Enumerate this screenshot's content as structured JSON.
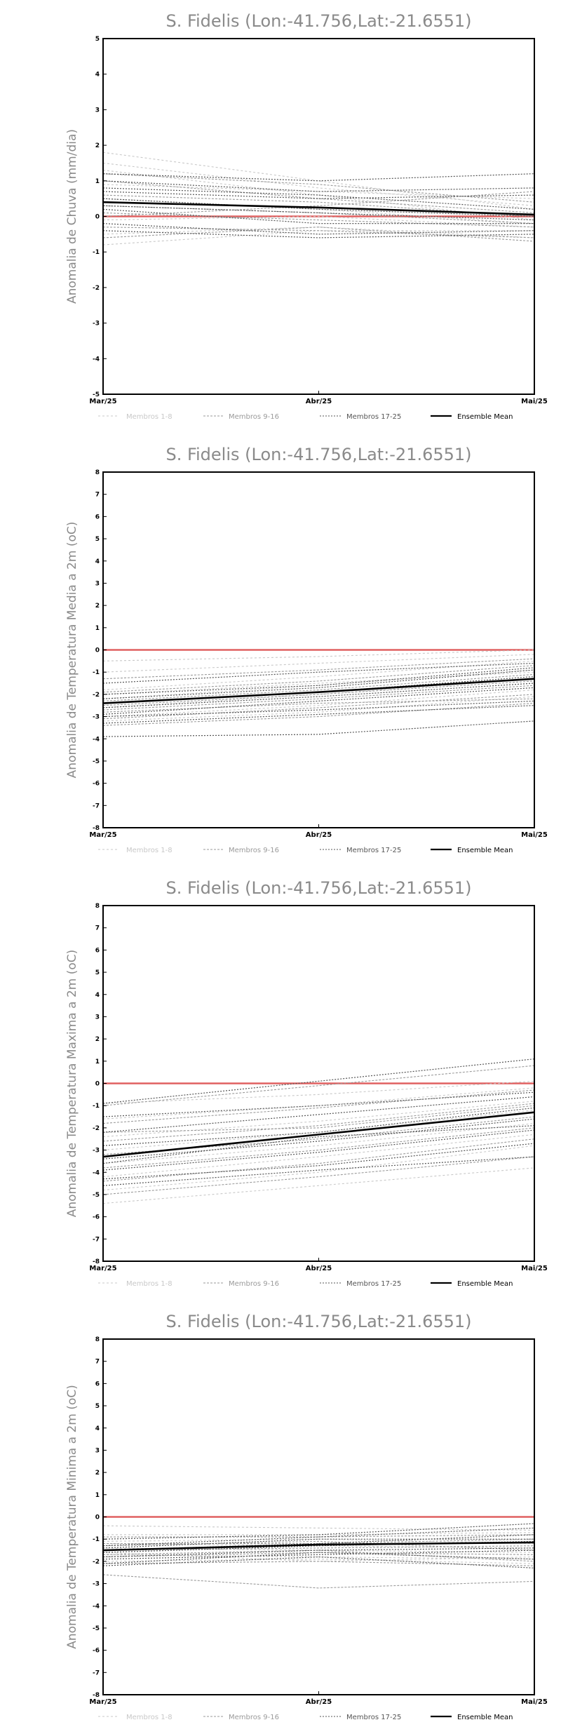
{
  "legend": {
    "members_1_8": "Membros 1-8",
    "members_9_16": "Membros 9-16",
    "members_17_25": "Membros 17-25",
    "ensemble_mean": "Ensemble Mean"
  },
  "colors": {
    "members_1_8": "#c8c8c8",
    "members_9_16": "#9a9a9a",
    "members_17_25": "#555555",
    "ensemble_mean": "#000000",
    "zero_line": "#e06060"
  },
  "chart_data": [
    {
      "type": "line",
      "title": "S. Fidelis (Lon:-41.756,Lat:-21.6551)",
      "ylabel": "Anomalia de Chuva (mm/dia)",
      "categories": [
        "Mar/25",
        "Abr/25",
        "Mai/25"
      ],
      "ylim": [
        -5,
        5
      ],
      "yticks": [
        -5,
        -4,
        -3,
        -2,
        -1,
        0,
        1,
        2,
        3,
        4,
        5
      ],
      "zero_line": true,
      "series": [
        {
          "group": "members_1_8",
          "values": [
            1.8,
            1.0,
            0.2
          ]
        },
        {
          "group": "members_1_8",
          "values": [
            1.5,
            0.8,
            0.3
          ]
        },
        {
          "group": "members_1_8",
          "values": [
            1.3,
            0.6,
            -0.1
          ]
        },
        {
          "group": "members_1_8",
          "values": [
            0.9,
            0.7,
            0.5
          ]
        },
        {
          "group": "members_1_8",
          "values": [
            0.5,
            0.2,
            -0.2
          ]
        },
        {
          "group": "members_1_8",
          "values": [
            -0.1,
            0.0,
            -0.3
          ]
        },
        {
          "group": "members_1_8",
          "values": [
            -0.5,
            -0.3,
            -0.6
          ]
        },
        {
          "group": "members_1_8",
          "values": [
            -0.8,
            -0.4,
            -0.4
          ]
        },
        {
          "group": "members_9_16",
          "values": [
            1.2,
            0.9,
            0.4
          ]
        },
        {
          "group": "members_9_16",
          "values": [
            1.0,
            0.5,
            0.1
          ]
        },
        {
          "group": "members_9_16",
          "values": [
            0.6,
            0.4,
            0.0
          ]
        },
        {
          "group": "members_9_16",
          "values": [
            0.3,
            0.1,
            -0.2
          ]
        },
        {
          "group": "members_9_16",
          "values": [
            0.1,
            -0.1,
            -0.3
          ]
        },
        {
          "group": "members_9_16",
          "values": [
            -0.3,
            -0.4,
            -0.6
          ]
        },
        {
          "group": "members_9_16",
          "values": [
            -0.6,
            -0.3,
            -0.7
          ]
        },
        {
          "group": "members_9_16",
          "values": [
            0.0,
            0.3,
            0.7
          ]
        },
        {
          "group": "members_17_25",
          "values": [
            1.2,
            1.0,
            1.2
          ]
        },
        {
          "group": "members_17_25",
          "values": [
            1.0,
            0.7,
            0.8
          ]
        },
        {
          "group": "members_17_25",
          "values": [
            0.7,
            0.5,
            0.6
          ]
        },
        {
          "group": "members_17_25",
          "values": [
            0.5,
            0.2,
            0.0
          ]
        },
        {
          "group": "members_17_25",
          "values": [
            0.3,
            0.1,
            -0.1
          ]
        },
        {
          "group": "members_17_25",
          "values": [
            0.2,
            -0.2,
            -0.2
          ]
        },
        {
          "group": "members_17_25",
          "values": [
            -0.2,
            -0.5,
            -0.4
          ]
        },
        {
          "group": "members_17_25",
          "values": [
            -0.4,
            -0.6,
            -0.5
          ]
        },
        {
          "group": "members_17_25",
          "values": [
            0.8,
            0.6,
            0.2
          ]
        },
        {
          "group": "ensemble_mean",
          "name": "Ensemble Mean",
          "values": [
            0.4,
            0.25,
            0.05
          ]
        }
      ]
    },
    {
      "type": "line",
      "title": "S. Fidelis (Lon:-41.756,Lat:-21.6551)",
      "ylabel": "Anomalia de Temperatura Media a 2m (oC)",
      "categories": [
        "Mar/25",
        "Abr/25",
        "Mai/25"
      ],
      "ylim": [
        -8,
        8
      ],
      "yticks": [
        -8,
        -7,
        -6,
        -5,
        -4,
        -3,
        -2,
        -1,
        0,
        1,
        2,
        3,
        4,
        5,
        6,
        7,
        8
      ],
      "zero_line": true,
      "series": [
        {
          "group": "members_1_8",
          "values": [
            -0.5,
            -0.3,
            0.0
          ]
        },
        {
          "group": "members_1_8",
          "values": [
            -1.0,
            -0.6,
            -0.2
          ]
        },
        {
          "group": "members_1_8",
          "values": [
            -1.8,
            -1.2,
            -0.5
          ]
        },
        {
          "group": "members_1_8",
          "values": [
            -2.2,
            -1.6,
            -0.9
          ]
        },
        {
          "group": "members_1_8",
          "values": [
            -2.6,
            -2.0,
            -1.3
          ]
        },
        {
          "group": "members_1_8",
          "values": [
            -3.0,
            -2.5,
            -1.8
          ]
        },
        {
          "group": "members_1_8",
          "values": [
            -3.2,
            -2.8,
            -2.1
          ]
        },
        {
          "group": "members_1_8",
          "values": [
            -2.0,
            -1.5,
            -1.0
          ]
        },
        {
          "group": "members_9_16",
          "values": [
            -1.3,
            -0.9,
            -0.4
          ]
        },
        {
          "group": "members_9_16",
          "values": [
            -1.9,
            -1.4,
            -0.7
          ]
        },
        {
          "group": "members_9_16",
          "values": [
            -2.3,
            -1.8,
            -1.1
          ]
        },
        {
          "group": "members_9_16",
          "values": [
            -2.7,
            -2.2,
            -1.6
          ]
        },
        {
          "group": "members_9_16",
          "values": [
            -3.1,
            -2.6,
            -2.0
          ]
        },
        {
          "group": "members_9_16",
          "values": [
            -3.4,
            -3.0,
            -2.4
          ]
        },
        {
          "group": "members_9_16",
          "values": [
            -2.5,
            -2.0,
            -1.4
          ]
        },
        {
          "group": "members_9_16",
          "values": [
            -2.8,
            -2.4,
            -2.2
          ]
        },
        {
          "group": "members_17_25",
          "values": [
            -1.5,
            -1.0,
            -0.6
          ]
        },
        {
          "group": "members_17_25",
          "values": [
            -2.0,
            -1.6,
            -0.8
          ]
        },
        {
          "group": "members_17_25",
          "values": [
            -2.4,
            -1.9,
            -1.2
          ]
        },
        {
          "group": "members_17_25",
          "values": [
            -2.6,
            -2.1,
            -1.5
          ]
        },
        {
          "group": "members_17_25",
          "values": [
            -2.9,
            -2.3,
            -1.7
          ]
        },
        {
          "group": "members_17_25",
          "values": [
            -3.0,
            -2.7,
            -2.3
          ]
        },
        {
          "group": "members_17_25",
          "values": [
            -3.3,
            -2.9,
            -2.5
          ]
        },
        {
          "group": "members_17_25",
          "values": [
            -3.9,
            -3.8,
            -3.2
          ]
        },
        {
          "group": "members_17_25",
          "values": [
            -2.2,
            -1.7,
            -0.9
          ]
        },
        {
          "group": "ensemble_mean",
          "name": "Ensemble Mean",
          "values": [
            -2.4,
            -1.9,
            -1.3
          ]
        }
      ]
    },
    {
      "type": "line",
      "title": "S. Fidelis (Lon:-41.756,Lat:-21.6551)",
      "ylabel": "Anomalia de Temperatura Maxima a 2m (oC)",
      "categories": [
        "Mar/25",
        "Abr/25",
        "Mai/25"
      ],
      "ylim": [
        -8,
        8
      ],
      "yticks": [
        -8,
        -7,
        -6,
        -5,
        -4,
        -3,
        -2,
        -1,
        0,
        1,
        2,
        3,
        4,
        5,
        6,
        7,
        8
      ],
      "zero_line": true,
      "series": [
        {
          "group": "members_1_8",
          "values": [
            -0.9,
            -0.5,
            0.1
          ]
        },
        {
          "group": "members_1_8",
          "values": [
            -1.6,
            -1.0,
            -0.2
          ]
        },
        {
          "group": "members_1_8",
          "values": [
            -2.4,
            -1.7,
            -0.8
          ]
        },
        {
          "group": "members_1_8",
          "values": [
            -3.0,
            -2.2,
            -1.2
          ]
        },
        {
          "group": "members_1_8",
          "values": [
            -3.6,
            -2.8,
            -1.8
          ]
        },
        {
          "group": "members_1_8",
          "values": [
            -4.2,
            -3.3,
            -2.3
          ]
        },
        {
          "group": "members_1_8",
          "values": [
            -4.8,
            -4.0,
            -2.8
          ]
        },
        {
          "group": "members_1_8",
          "values": [
            -5.4,
            -4.6,
            -3.8
          ]
        },
        {
          "group": "members_9_16",
          "values": [
            -1.0,
            -0.1,
            0.8
          ]
        },
        {
          "group": "members_9_16",
          "values": [
            -1.8,
            -1.1,
            -0.3
          ]
        },
        {
          "group": "members_9_16",
          "values": [
            -2.6,
            -1.9,
            -0.9
          ]
        },
        {
          "group": "members_9_16",
          "values": [
            -3.2,
            -2.5,
            -1.5
          ]
        },
        {
          "group": "members_9_16",
          "values": [
            -3.8,
            -3.0,
            -2.0
          ]
        },
        {
          "group": "members_9_16",
          "values": [
            -4.4,
            -3.6,
            -2.5
          ]
        },
        {
          "group": "members_9_16",
          "values": [
            -5.0,
            -4.2,
            -3.3
          ]
        },
        {
          "group": "members_9_16",
          "values": [
            -2.2,
            -2.0,
            -1.0
          ]
        },
        {
          "group": "members_17_25",
          "values": [
            -0.9,
            0.1,
            1.1
          ]
        },
        {
          "group": "members_17_25",
          "values": [
            -1.5,
            -1.0,
            -0.4
          ]
        },
        {
          "group": "members_17_25",
          "values": [
            -2.2,
            -1.4,
            -0.6
          ]
        },
        {
          "group": "members_17_25",
          "values": [
            -2.8,
            -2.2,
            -1.1
          ]
        },
        {
          "group": "members_17_25",
          "values": [
            -3.4,
            -2.6,
            -1.6
          ]
        },
        {
          "group": "members_17_25",
          "values": [
            -3.9,
            -3.1,
            -2.1
          ]
        },
        {
          "group": "members_17_25",
          "values": [
            -4.3,
            -3.7,
            -2.7
          ]
        },
        {
          "group": "members_17_25",
          "values": [
            -4.6,
            -3.9,
            -3.3
          ]
        },
        {
          "group": "members_17_25",
          "values": [
            -3.6,
            -2.4,
            -1.9
          ]
        },
        {
          "group": "ensemble_mean",
          "name": "Ensemble Mean",
          "values": [
            -3.3,
            -2.3,
            -1.3
          ]
        }
      ]
    },
    {
      "type": "line",
      "title": "S. Fidelis (Lon:-41.756,Lat:-21.6551)",
      "ylabel": "Anomalia de Temperatura Minima a 2m (oC)",
      "categories": [
        "Mar/25",
        "Abr/25",
        "Mai/25"
      ],
      "ylim": [
        -8,
        8
      ],
      "yticks": [
        -8,
        -7,
        -6,
        -5,
        -4,
        -3,
        -2,
        -1,
        0,
        1,
        2,
        3,
        4,
        5,
        6,
        7,
        8
      ],
      "zero_line": true,
      "series": [
        {
          "group": "members_1_8",
          "values": [
            -0.4,
            -0.5,
            -0.6
          ]
        },
        {
          "group": "members_1_8",
          "values": [
            -0.8,
            -0.8,
            -0.7
          ]
        },
        {
          "group": "members_1_8",
          "values": [
            -1.1,
            -1.0,
            -1.2
          ]
        },
        {
          "group": "members_1_8",
          "values": [
            -1.4,
            -1.5,
            -1.6
          ]
        },
        {
          "group": "members_1_8",
          "values": [
            -1.7,
            -1.8,
            -1.9
          ]
        },
        {
          "group": "members_1_8",
          "values": [
            -2.0,
            -1.9,
            -2.1
          ]
        },
        {
          "group": "members_1_8",
          "values": [
            -1.2,
            -1.3,
            -1.4
          ]
        },
        {
          "group": "members_1_8",
          "values": [
            -1.6,
            -2.0,
            -1.8
          ]
        },
        {
          "group": "members_9_16",
          "values": [
            -0.9,
            -0.9,
            -0.8
          ]
        },
        {
          "group": "members_9_16",
          "values": [
            -1.2,
            -1.2,
            -1.0
          ]
        },
        {
          "group": "members_9_16",
          "values": [
            -1.5,
            -1.4,
            -1.3
          ]
        },
        {
          "group": "members_9_16",
          "values": [
            -1.8,
            -1.6,
            -1.7
          ]
        },
        {
          "group": "members_9_16",
          "values": [
            -2.1,
            -2.0,
            -2.2
          ]
        },
        {
          "group": "members_9_16",
          "values": [
            -1.3,
            -1.1,
            -1.5
          ]
        },
        {
          "group": "members_9_16",
          "values": [
            -2.6,
            -3.2,
            -2.9
          ]
        },
        {
          "group": "members_9_16",
          "values": [
            -1.7,
            -1.5,
            -2.0
          ]
        },
        {
          "group": "members_17_25",
          "values": [
            -1.0,
            -0.8,
            -0.3
          ]
        },
        {
          "group": "members_17_25",
          "values": [
            -1.3,
            -0.9,
            -0.5
          ]
        },
        {
          "group": "members_17_25",
          "values": [
            -1.5,
            -1.2,
            -0.8
          ]
        },
        {
          "group": "members_17_25",
          "values": [
            -1.6,
            -1.3,
            -1.1
          ]
        },
        {
          "group": "members_17_25",
          "values": [
            -1.8,
            -1.5,
            -1.4
          ]
        },
        {
          "group": "members_17_25",
          "values": [
            -1.9,
            -1.7,
            -1.5
          ]
        },
        {
          "group": "members_17_25",
          "values": [
            -2.1,
            -1.6,
            -1.9
          ]
        },
        {
          "group": "members_17_25",
          "values": [
            -1.4,
            -1.0,
            -1.0
          ]
        },
        {
          "group": "members_17_25",
          "values": [
            -2.2,
            -1.8,
            -2.3
          ]
        },
        {
          "group": "ensemble_mean",
          "name": "Ensemble Mean",
          "values": [
            -1.5,
            -1.25,
            -1.15
          ]
        }
      ]
    }
  ]
}
